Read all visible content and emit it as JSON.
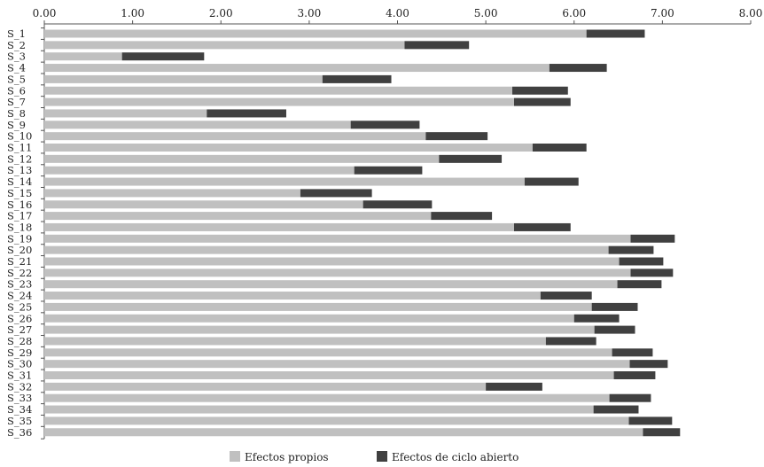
{
  "chart_data": {
    "type": "bar",
    "orientation": "horizontal",
    "stacked": true,
    "xlim": [
      0,
      8
    ],
    "x_ticks": [
      "0.00",
      "1.00",
      "2.00",
      "3.00",
      "4.00",
      "5.00",
      "6.00",
      "7.00",
      "8.00"
    ],
    "x_axis_position": "top",
    "grid": false,
    "legend_position": "bottom",
    "categories": [
      "S_1",
      "S_2",
      "S_3",
      "S_4",
      "S_5",
      "S_6",
      "S_7",
      "S_8",
      "S_9",
      "S_10",
      "S_11",
      "S_12",
      "S_13",
      "S_14",
      "S_15",
      "S_16",
      "S_17",
      "S_18",
      "S_19",
      "S_20",
      "S_21",
      "S_22",
      "S_23",
      "S_24",
      "S_25",
      "S_26",
      "S_27",
      "S_28",
      "S_29",
      "S_30",
      "S_31",
      "S_32",
      "S_33",
      "S_34",
      "S_35",
      "S_36"
    ],
    "series": [
      {
        "name": "Efectos propios",
        "color": "#c0c0c0",
        "values": [
          6.14,
          4.08,
          0.88,
          5.72,
          3.15,
          5.3,
          5.32,
          1.84,
          3.47,
          4.32,
          5.53,
          4.47,
          3.51,
          5.44,
          2.9,
          3.61,
          4.38,
          5.32,
          6.64,
          6.39,
          6.51,
          6.64,
          6.49,
          5.62,
          6.2,
          6.0,
          6.23,
          5.68,
          6.43,
          6.63,
          6.45,
          5.0,
          6.4,
          6.22,
          6.62,
          6.78
        ]
      },
      {
        "name": "Efectos de ciclo abierto",
        "color": "#404040",
        "values": [
          0.66,
          0.73,
          0.93,
          0.65,
          0.78,
          0.63,
          0.64,
          0.9,
          0.78,
          0.7,
          0.61,
          0.71,
          0.77,
          0.61,
          0.81,
          0.78,
          0.69,
          0.64,
          0.5,
          0.51,
          0.5,
          0.48,
          0.5,
          0.58,
          0.52,
          0.51,
          0.46,
          0.57,
          0.46,
          0.43,
          0.47,
          0.64,
          0.47,
          0.51,
          0.49,
          0.42
        ]
      }
    ]
  }
}
